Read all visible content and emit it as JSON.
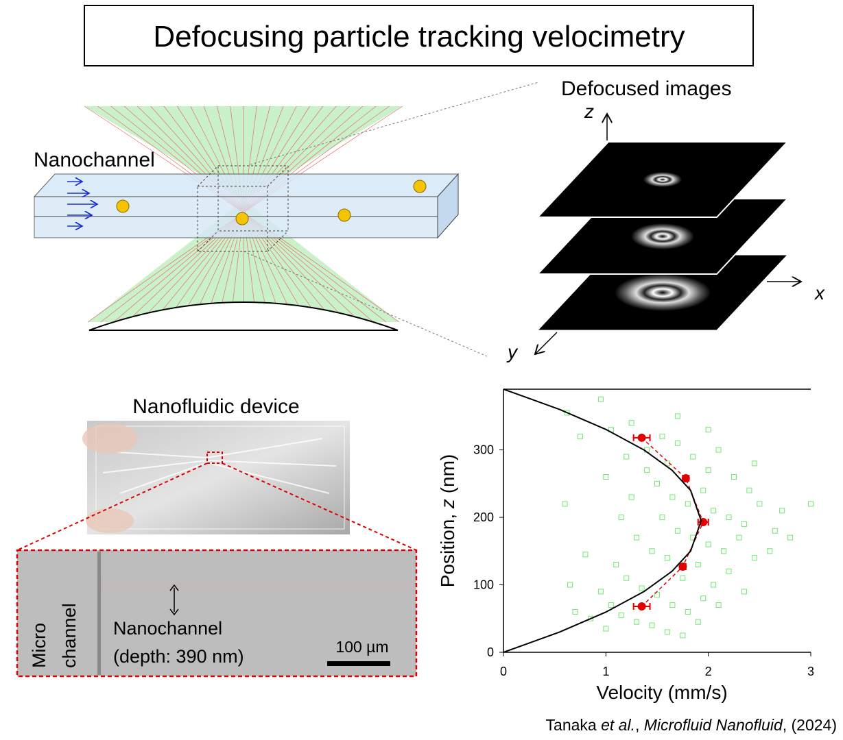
{
  "title": "Defocusing particle tracking velocimetry",
  "schematic": {
    "channel_label": "Nanochannel",
    "images_label": "Defocused images",
    "axis_z": "z",
    "axis_x": "x",
    "axis_y": "y"
  },
  "device": {
    "title": "Nanofluidic device",
    "micro_label_1": "Micro",
    "micro_label_2": "channel",
    "nano_label": "Nanochannel",
    "depth_label": "(depth: 390 nm)",
    "scale_bar": "100 µm"
  },
  "citation": {
    "authors": "Tanaka ",
    "etal": "et al.",
    "sep": ", ",
    "journal": "Microfluid Nanofluid",
    "year": ", (2024)"
  },
  "chart_data": {
    "type": "scatter",
    "x_label": "Velocity (mm/s)",
    "y_label": {
      "prefix": "Position, ",
      "variable": "z",
      "suffix": " (nm)"
    },
    "xlim": [
      0,
      3
    ],
    "ylim": [
      0,
      390
    ],
    "xticks": [
      0,
      1,
      2,
      3
    ],
    "yticks": [
      0,
      100,
      200,
      300
    ],
    "series": [
      {
        "mark": "square",
        "color": "#6ee86e",
        "x": [
          0.62,
          0.95,
          1.05,
          1.2,
          1.25,
          1.4,
          1.55,
          1.6,
          1.7,
          1.85,
          2.0,
          2.1,
          2.25,
          2.4,
          1.5,
          1.65,
          1.8,
          1.95,
          2.05,
          2.2,
          2.35,
          2.5,
          2.65,
          2.72,
          1.55,
          1.7,
          1.85,
          2.0,
          2.15,
          2.3,
          2.45,
          2.6,
          1.3,
          1.45,
          1.6,
          1.75,
          1.9,
          2.05,
          2.2,
          2.35,
          1.1,
          1.2,
          1.35,
          1.5,
          1.65,
          1.8,
          1.95,
          2.1,
          0.95,
          1.05,
          1.15,
          1.3,
          1.45,
          1.6,
          1.75,
          1.9,
          0.7,
          0.85,
          1.0,
          0.65,
          0.8,
          0.6,
          3.0,
          1.4,
          1.25,
          2.45,
          1.15,
          1.0,
          0.75,
          2.8,
          1.7,
          2.0
        ],
        "values": [
          355,
          375,
          330,
          290,
          340,
          300,
          320,
          280,
          310,
          290,
          270,
          300,
          260,
          240,
          250,
          230,
          220,
          240,
          210,
          200,
          190,
          220,
          180,
          210,
          200,
          180,
          170,
          160,
          150,
          170,
          140,
          150,
          170,
          150,
          140,
          110,
          130,
          100,
          120,
          90,
          130,
          110,
          95,
          85,
          70,
          60,
          80,
          70,
          90,
          70,
          55,
          45,
          40,
          30,
          25,
          45,
          60,
          50,
          35,
          100,
          145,
          220,
          220,
          270,
          230,
          280,
          200,
          260,
          320,
          170,
          350,
          330
        ]
      },
      {
        "mark": "dot",
        "connect": "dashed",
        "color": "#e00000",
        "x": [
          1.35,
          1.78,
          1.95,
          1.75,
          1.35
        ],
        "values": [
          318,
          258,
          193,
          127,
          68
        ],
        "xerr": [
          0.08,
          0.03,
          0.05,
          0.03,
          0.08
        ]
      },
      {
        "mark": "line",
        "color": "#000000",
        "x": [
          0,
          0.548,
          1.005,
          1.371,
          1.645,
          1.827,
          1.93,
          1.827,
          1.645,
          1.371,
          1.005,
          0.548,
          0
        ],
        "values": [
          0,
          30,
          60,
          90,
          120,
          150,
          195,
          240,
          270,
          300,
          330,
          360,
          390
        ]
      }
    ]
  }
}
